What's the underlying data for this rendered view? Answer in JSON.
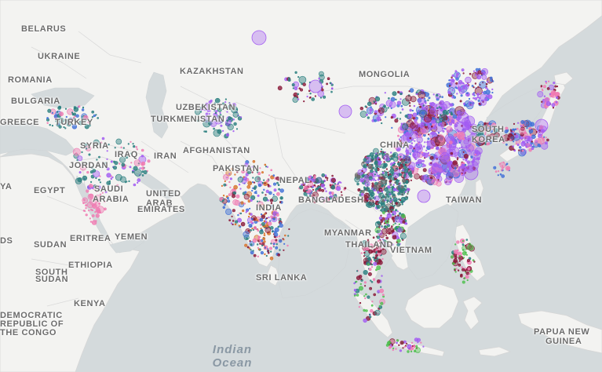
{
  "map": {
    "land_color": "#f3f3f1",
    "water_color": "#d4dadc",
    "border_color": "#cfcfcf"
  },
  "labels": {
    "belarus": "BELARUS",
    "ukraine": "UKRAINE",
    "romania": "ROMANIA",
    "bulgaria": "BULGARIA",
    "greece": "GREECE",
    "turkey": "TURKEY",
    "syria": "SYRIA",
    "iraq": "IRAQ",
    "jordan": "JORDAN",
    "egypt": "EGYPT",
    "saudi_1": "SAUDI",
    "saudi_2": "ARABIA",
    "uae_1": "UNITED",
    "uae_2": "ARAB",
    "uae_3": "EMIRATES",
    "yemen": "YEMEN",
    "eritrea": "ERITREA",
    "sudan": "SUDAN",
    "south_sudan_1": "SOUTH",
    "south_sudan_2": "SUDAN",
    "ethiopia": "ETHIOPIA",
    "kenya": "KENYA",
    "drc_1": "DEMOCRATIC",
    "drc_2": "REPUBLIC OF",
    "drc_3": "THE CONGO",
    "kazakhstan": "KAZAKHSTAN",
    "uzbekistan": "UZBEKISTAN",
    "turkmenistan": "TURKMENISTAN",
    "iran": "IRAN",
    "afghanistan": "AFGHANISTAN",
    "pakistan": "PAKISTAN",
    "nepal": "NEPAL",
    "india": "INDIA",
    "bangladesh": "BANGLADESH",
    "sri_lanka": "SRI LANKA",
    "myanmar": "MYANMAR",
    "thailand": "THAILAND",
    "vietnam": "VIETNAM",
    "mongolia": "MONGOLIA",
    "china": "CHINA",
    "south_korea_1": "SOUTH",
    "south_korea_2": "KOREA",
    "taiwan": "TAIWAN",
    "papua_1": "PAPUA NEW",
    "papua_2": "GUINEA",
    "ocean_1": "Indian",
    "ocean_2": "Ocean",
    "edge_ya": "YA",
    "edge_ds": "DS"
  },
  "point_colors": [
    "#a35df2",
    "#2a7f7f",
    "#f07ab2",
    "#8a1a3a",
    "#3f6fd8",
    "#4fc04f",
    "#d8732a",
    "#6b6b6b"
  ]
}
